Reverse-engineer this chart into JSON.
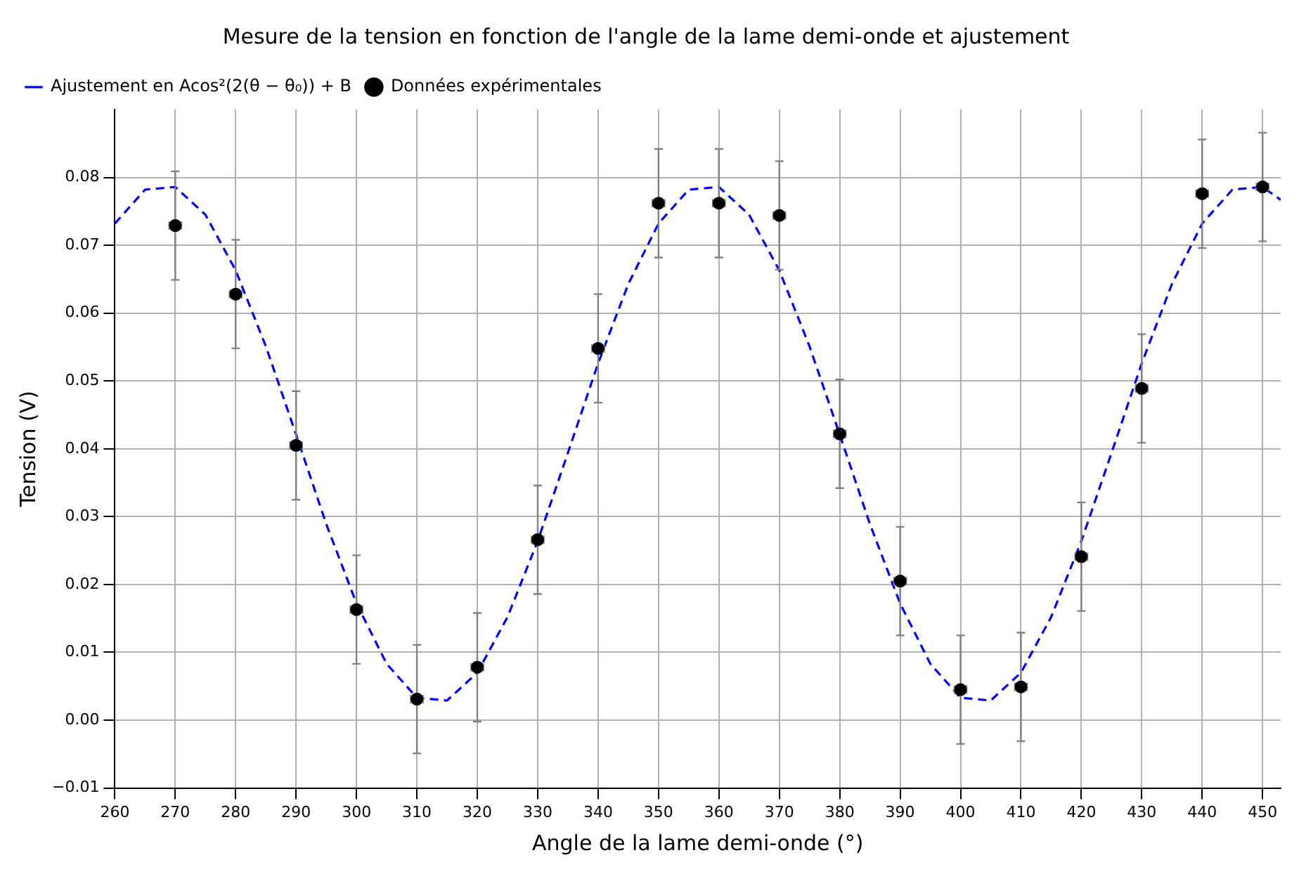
{
  "chart_data": {
    "type": "scatter",
    "title": "Mesure de la tension en fonction de l'angle de la lame demi-onde et ajustement",
    "xlabel": "Angle de la lame demi-onde (°)",
    "ylabel": "Tension (V)",
    "xlim": [
      260,
      453
    ],
    "xticks": [
      260,
      270,
      280,
      290,
      300,
      310,
      320,
      330,
      340,
      350,
      360,
      370,
      380,
      390,
      400,
      410,
      420,
      430,
      440,
      450
    ],
    "ylim": [
      -0.01,
      0.09
    ],
    "yticks": [
      {
        "value": -0.01,
        "label": "−0.01"
      },
      {
        "value": 0,
        "label": "0.00"
      },
      {
        "value": 0.01,
        "label": "0.01"
      },
      {
        "value": 0.02,
        "label": "0.02"
      },
      {
        "value": 0.03,
        "label": "0.03"
      },
      {
        "value": 0.04,
        "label": "0.04"
      },
      {
        "value": 0.05,
        "label": "0.05"
      },
      {
        "value": 0.06,
        "label": "0.06"
      },
      {
        "value": 0.07,
        "label": "0.07"
      },
      {
        "value": 0.08,
        "label": "0.08"
      }
    ],
    "grid": true,
    "legend": "top left",
    "series": [
      {
        "name": "Ajustement en Acos²(2(θ − θ₀)) + B",
        "type": "line",
        "color": "#0000ff",
        "line_style": "dashed",
        "marker": "none",
        "x": [
          260,
          265,
          270,
          275,
          280,
          285,
          290,
          295,
          300,
          305,
          310,
          315,
          320,
          325,
          330,
          335,
          340,
          345,
          350,
          355,
          360,
          365,
          370,
          375,
          380,
          385,
          390,
          395,
          400,
          405,
          410,
          415,
          420,
          425,
          430,
          435,
          440,
          445,
          450,
          453
        ],
        "values": [
          0.0732,
          0.0782,
          0.0786,
          0.0745,
          0.0663,
          0.0551,
          0.0421,
          0.0289,
          0.0172,
          0.0083,
          0.0033,
          0.0029,
          0.007,
          0.0152,
          0.0264,
          0.0394,
          0.0526,
          0.0643,
          0.0732,
          0.0782,
          0.0786,
          0.0745,
          0.0663,
          0.0551,
          0.0421,
          0.0289,
          0.0172,
          0.0083,
          0.0033,
          0.0029,
          0.007,
          0.0152,
          0.0264,
          0.0394,
          0.0526,
          0.0643,
          0.0732,
          0.0782,
          0.0786,
          0.0767
        ]
      },
      {
        "name": "Données expérimentales",
        "type": "scatter",
        "color": "#000000",
        "marker": "circle",
        "x": [
          270,
          280,
          290,
          300,
          310,
          320,
          330,
          340,
          350,
          360,
          370,
          380,
          390,
          400,
          410,
          420,
          430,
          440,
          450
        ],
        "values": [
          0.0729,
          0.0628,
          0.0405,
          0.0163,
          0.0031,
          0.0078,
          0.0266,
          0.0548,
          0.0762,
          0.0762,
          0.0744,
          0.0422,
          0.0205,
          0.0045,
          0.0049,
          0.0241,
          0.0489,
          0.0776,
          0.0786
        ],
        "errors": [
          0.008,
          0.008,
          0.008,
          0.008,
          0.008,
          0.008,
          0.008,
          0.008,
          0.008,
          0.008,
          0.008,
          0.008,
          0.008,
          0.008,
          0.008,
          0.008,
          0.008,
          0.008,
          0.008
        ],
        "xerrors": [
          1,
          1,
          1,
          1,
          1,
          1,
          1,
          1,
          1,
          1,
          1,
          1,
          1,
          1,
          1,
          1,
          1,
          1,
          1
        ]
      }
    ]
  }
}
